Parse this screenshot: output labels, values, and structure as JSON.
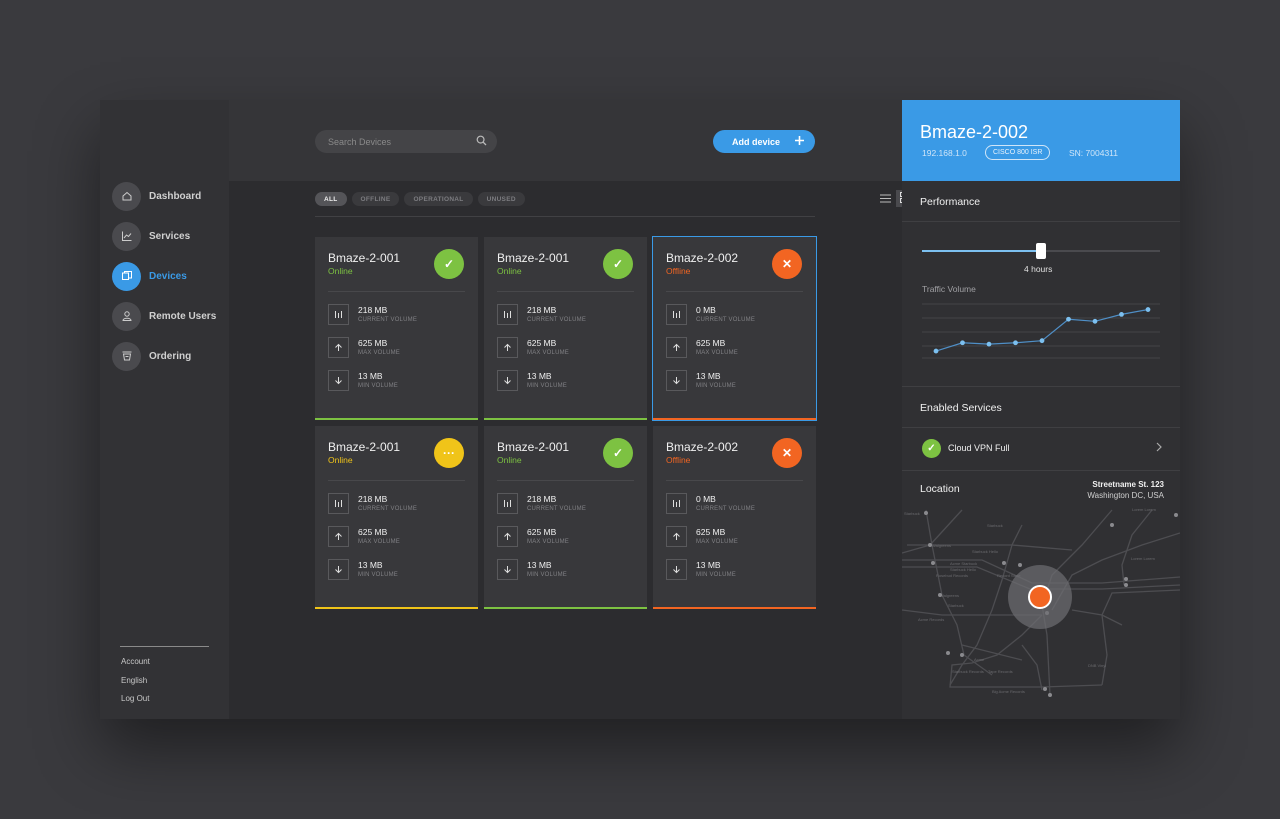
{
  "sidebar": {
    "items": [
      {
        "label": "Dashboard",
        "icon": "home-icon"
      },
      {
        "label": "Services",
        "icon": "chart-icon"
      },
      {
        "label": "Devices",
        "icon": "devices-icon",
        "active": true
      },
      {
        "label": "Remote Users",
        "icon": "user-icon"
      },
      {
        "label": "Ordering",
        "icon": "cart-icon"
      }
    ],
    "bottom_links": [
      "Account",
      "English",
      "Log Out"
    ]
  },
  "toolbar": {
    "search_placeholder": "Search Devices",
    "add_label": "Add device"
  },
  "filters": [
    "ALL",
    "OFFLINE",
    "OPERATIONAL",
    "UNUSED"
  ],
  "active_filter": "ALL",
  "view_mode": "grid",
  "metric_labels": {
    "current": "CURRENT VOLUME",
    "max": "MAX VOLUME",
    "min": "MIN VOLUME"
  },
  "devices": [
    {
      "name": "Bmaze-2-001",
      "status": "Online",
      "state": "ok",
      "current": "218 MB",
      "max": "625 MB",
      "min": "13 MB"
    },
    {
      "name": "Bmaze-2-001",
      "status": "Online",
      "state": "ok",
      "current": "218 MB",
      "max": "625 MB",
      "min": "13 MB"
    },
    {
      "name": "Bmaze-2-002",
      "status": "Offline",
      "state": "error",
      "current": "0 MB",
      "max": "625 MB",
      "min": "13 MB",
      "selected": true
    },
    {
      "name": "Bmaze-2-001",
      "status": "Online",
      "state": "pending",
      "current": "218 MB",
      "max": "625 MB",
      "min": "13 MB"
    },
    {
      "name": "Bmaze-2-001",
      "status": "Online",
      "state": "ok",
      "current": "218 MB",
      "max": "625 MB",
      "min": "13 MB"
    },
    {
      "name": "Bmaze-2-002",
      "status": "Offline",
      "state": "error",
      "current": "0 MB",
      "max": "625 MB",
      "min": "13 MB"
    }
  ],
  "colors": {
    "accent": "#3a9ae6",
    "ok": "#7dc242",
    "pending": "#f0c419",
    "error": "#f26522"
  },
  "detail": {
    "title": "Bmaze-2-002",
    "ip": "192.168.1.0",
    "model": "CISCO 800 ISR",
    "sn": "SN: 7004311",
    "performance_label": "Performance",
    "slider_fraction": 0.5,
    "slider_value": "4 hours",
    "traffic_label": "Traffic Volume",
    "traffic_series": [
      1,
      2.2,
      2.0,
      2.2,
      2.5,
      5.6,
      5.3,
      6.3,
      7.0
    ],
    "services_label": "Enabled Services",
    "service_name": "Cloud VPN Full",
    "location_label": "Location",
    "address_line1": "Streetname St. 123",
    "address_line2": "Washington DC, USA"
  }
}
